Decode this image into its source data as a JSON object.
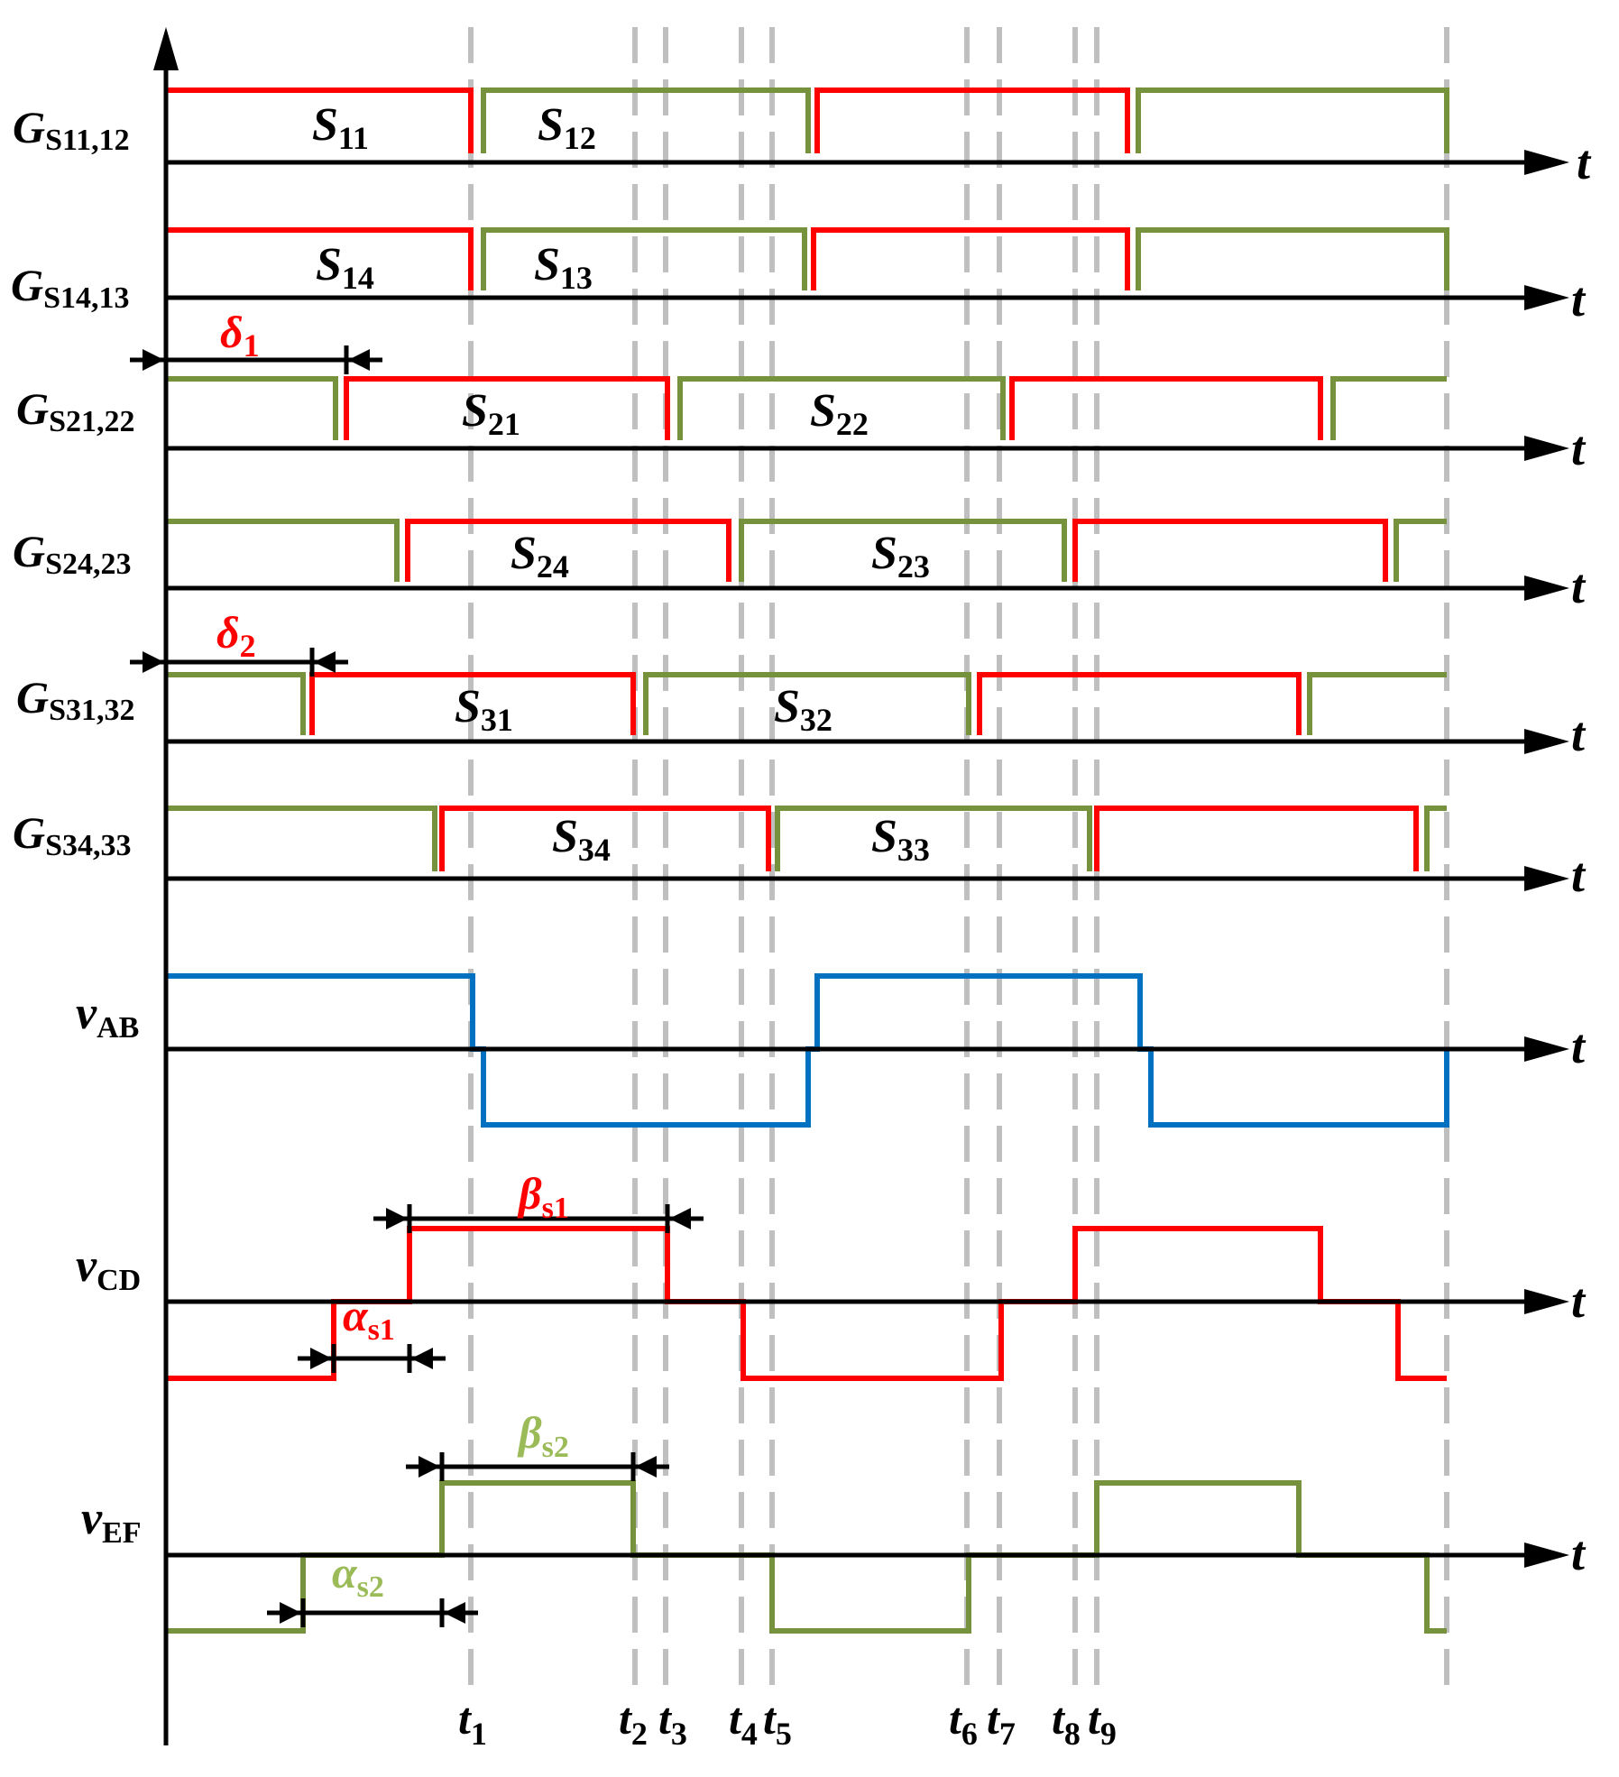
{
  "colors": {
    "red": "#ff0000",
    "green": "#76923c",
    "blue": "#0070c0",
    "axis": "#000000",
    "dash": "#bfbfbf",
    "greenText": "#9bbb59"
  },
  "axis_label": "t",
  "time_marks": [
    {
      "main": "t",
      "sub": "1"
    },
    {
      "main": "t",
      "sub": "2"
    },
    {
      "main": "t",
      "sub": "3"
    },
    {
      "main": "t",
      "sub": "4"
    },
    {
      "main": "t",
      "sub": "5"
    },
    {
      "main": "t",
      "sub": "6"
    },
    {
      "main": "t",
      "sub": "7"
    },
    {
      "main": "t",
      "sub": "8"
    },
    {
      "main": "t",
      "sub": "9"
    }
  ],
  "rows": [
    {
      "label_main": "G",
      "label_sub": "S11,12",
      "pulses": [
        {
          "main": "S",
          "sub": "11"
        },
        {
          "main": "S",
          "sub": "12"
        }
      ]
    },
    {
      "label_main": "G",
      "label_sub": "S14,13",
      "pulses": [
        {
          "main": "S",
          "sub": "14"
        },
        {
          "main": "S",
          "sub": "13"
        }
      ]
    },
    {
      "label_main": "G",
      "label_sub": "S21,22",
      "pulses": [
        {
          "main": "S",
          "sub": "21"
        },
        {
          "main": "S",
          "sub": "22"
        }
      ]
    },
    {
      "label_main": "G",
      "label_sub": "S24,23",
      "pulses": [
        {
          "main": "S",
          "sub": "24"
        },
        {
          "main": "S",
          "sub": "23"
        }
      ]
    },
    {
      "label_main": "G",
      "label_sub": "S31,32",
      "pulses": [
        {
          "main": "S",
          "sub": "31"
        },
        {
          "main": "S",
          "sub": "32"
        }
      ]
    },
    {
      "label_main": "G",
      "label_sub": "S34,33",
      "pulses": [
        {
          "main": "S",
          "sub": "34"
        },
        {
          "main": "S",
          "sub": "33"
        }
      ]
    }
  ],
  "voltages": [
    {
      "main": "v",
      "sub": "AB"
    },
    {
      "main": "v",
      "sub": "CD"
    },
    {
      "main": "v",
      "sub": "EF"
    }
  ],
  "intervals": {
    "delta1": {
      "main": "δ",
      "sub": "1"
    },
    "delta2": {
      "main": "δ",
      "sub": "2"
    },
    "beta_s1": {
      "main": "β",
      "sub": "s1"
    },
    "alpha_s1": {
      "main": "α",
      "sub": "s1"
    },
    "beta_s2": {
      "main": "β",
      "sub": "s2"
    },
    "alpha_s2": {
      "main": "α",
      "sub": "s2"
    }
  }
}
